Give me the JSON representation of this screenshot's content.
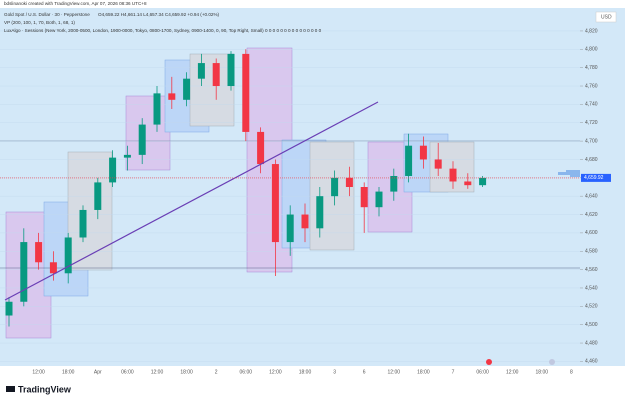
{
  "header": {
    "credit": "bdslinanoki created with TradingView.com, Apr 07, 2026 08:36 UTC+8",
    "symbol": "Gold Spot / U.S. Dollar · 30 · Pepperstone",
    "ohlc": "O4,659.22 H4,661.14 L4,657.34 C4,659.92 +0.94 (+0.02%)",
    "indicator_1": "VP (200, 100, 1, 70, Both, 1, 68, 1)",
    "indicator_2": "LuxAlgo · Sessions (New York, 2000-0500, London, 1900-0000, Tokyo, 0800-1700, Sydney, 0900-1400, 0, 90, Top Right, Small)  0 0 0 0 0 0 0 0 0 0 0 0 0 0 0",
    "currency": "USD",
    "logo": "TradingView"
  },
  "chart_data": {
    "type": "candlestick",
    "categories": [
      null,
      null,
      "12:00",
      null,
      "18:00",
      null,
      "Apr",
      null,
      "06:00",
      null,
      "12:00",
      null,
      "18:00",
      null,
      "2",
      null,
      "06:00",
      null,
      "12:00",
      null,
      "18:00",
      null,
      "3",
      null,
      "6",
      null,
      "12:00",
      null,
      "18:00",
      null,
      "7",
      null,
      "06:00",
      null,
      "12:00",
      null,
      "18:00",
      null,
      "8"
    ],
    "open": [
      4510,
      4525,
      4590,
      4568,
      4556,
      4595,
      4625,
      4655,
      4682,
      4685,
      4718,
      4752,
      4745,
      4768,
      4785,
      4760,
      4795,
      4710,
      4675,
      4590,
      4620,
      4605,
      4640,
      4660,
      4650,
      4628,
      4645,
      4662,
      4695,
      4680,
      4670,
      4656,
      4652,
      null,
      null,
      null,
      null,
      null,
      null
    ],
    "high": [
      4530,
      4605,
      4600,
      4580,
      4600,
      4630,
      4660,
      4690,
      4695,
      4725,
      4760,
      4770,
      4775,
      4795,
      4790,
      4798,
      4800,
      4715,
      4680,
      4630,
      4632,
      4650,
      4668,
      4672,
      4655,
      4650,
      4670,
      4708,
      4705,
      4698,
      4678,
      4665,
      4662,
      null,
      null,
      null,
      null,
      null,
      null
    ],
    "low": [
      4498,
      4520,
      4560,
      4548,
      4545,
      4590,
      4615,
      4650,
      4668,
      4675,
      4710,
      4735,
      4738,
      4760,
      4745,
      4755,
      4700,
      4665,
      4553,
      4575,
      4590,
      4595,
      4630,
      4640,
      4600,
      4618,
      4635,
      4655,
      4670,
      4662,
      4648,
      4648,
      4650,
      null,
      null,
      null,
      null,
      null,
      null
    ],
    "close": [
      4525,
      4590,
      4568,
      4556,
      4595,
      4625,
      4655,
      4682,
      4685,
      4718,
      4752,
      4745,
      4768,
      4785,
      4760,
      4795,
      4710,
      4675,
      4590,
      4620,
      4605,
      4640,
      4660,
      4650,
      4628,
      4645,
      4662,
      4695,
      4680,
      4670,
      4656,
      4652,
      4659.92,
      null,
      null,
      null,
      null,
      null,
      null
    ],
    "up_color": "#089981",
    "down_color": "#f23645",
    "ylim": [
      4455,
      4845
    ],
    "yticks": [
      {
        "value": 4820,
        "label": "4,820"
      },
      {
        "value": 4800,
        "label": "4,800"
      },
      {
        "value": 4780,
        "label": "4,780"
      },
      {
        "value": 4760,
        "label": "4,760"
      },
      {
        "value": 4740,
        "label": "4,740"
      },
      {
        "value": 4720,
        "label": "4,720"
      },
      {
        "value": 4700,
        "label": "4,700"
      },
      {
        "value": 4680,
        "label": "4,680"
      },
      {
        "value": 4660,
        "label": "4,660"
      },
      {
        "value": 4640,
        "label": "4,640"
      },
      {
        "value": 4620,
        "label": "4,620"
      },
      {
        "value": 4600,
        "label": "4,600"
      },
      {
        "value": 4580,
        "label": "4,580"
      },
      {
        "value": 4560,
        "label": "4,560"
      },
      {
        "value": 4540,
        "label": "4,540"
      },
      {
        "value": 4520,
        "label": "4,520"
      },
      {
        "value": 4500,
        "label": "4,500"
      },
      {
        "value": 4480,
        "label": "4,480"
      },
      {
        "value": 4460,
        "label": "4,460"
      }
    ],
    "last_price": {
      "value": 4659.92,
      "label": "4,659.92"
    },
    "grid": true
  }
}
